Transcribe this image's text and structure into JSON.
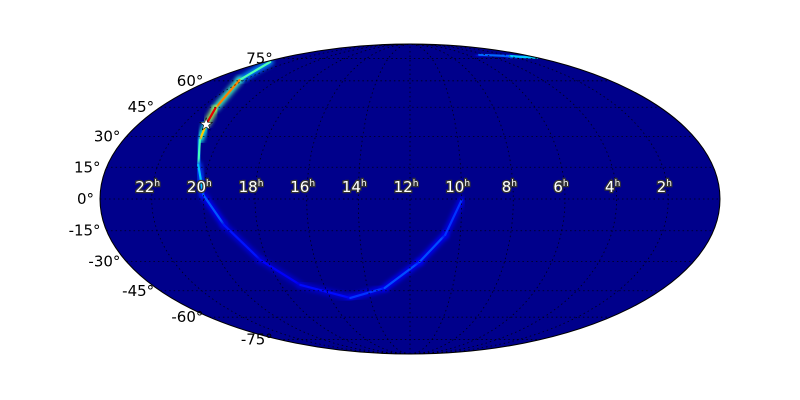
{
  "chart_data": {
    "type": "heatmap",
    "projection": "mollweide",
    "title": "",
    "colormap": "jet",
    "background_color": "#00008b",
    "ra_tick_labels": [
      "22",
      "20",
      "18",
      "16",
      "14",
      "12",
      "10",
      "8",
      "6",
      "4",
      "2"
    ],
    "ra_tick_values_hours": [
      22,
      20,
      18,
      16,
      14,
      12,
      10,
      8,
      6,
      4,
      2
    ],
    "ra_unit_suffix": "h",
    "dec_tick_labels": [
      "75°",
      "60°",
      "45°",
      "30°",
      "15°",
      "0°",
      "-15°",
      "-30°",
      "-45°",
      "-60°",
      "-75°"
    ],
    "dec_tick_values_deg": [
      75,
      60,
      45,
      30,
      15,
      0,
      -15,
      -30,
      -45,
      -60,
      -75
    ],
    "grid": true,
    "probability_arc": [
      {
        "ra": 23.6,
        "dec": 72.5,
        "p": 0.35
      },
      {
        "ra": 22.3,
        "dec": 60.5,
        "p": 0.55
      },
      {
        "ra": 21.3,
        "dec": 44.6,
        "p": 0.95
      },
      {
        "ra": 21.0,
        "dec": 36.0,
        "p": 0.85
      },
      {
        "ra": 20.8,
        "dec": 28.3,
        "p": 0.5
      },
      {
        "ra": 20.4,
        "dec": 16.1,
        "p": 0.38
      },
      {
        "ra": 20.0,
        "dec": 1.9,
        "p": 0.25
      },
      {
        "ra": 19.3,
        "dec": -12.3,
        "p": 0.17
      },
      {
        "ra": 18.3,
        "dec": -29.2,
        "p": 0.12
      },
      {
        "ra": 17.1,
        "dec": -41.9,
        "p": 0.12
      },
      {
        "ra": 15.0,
        "dec": -48.9,
        "p": 0.15
      },
      {
        "ra": 13.2,
        "dec": -43.5,
        "p": 0.2
      },
      {
        "ra": 11.6,
        "dec": -30.2,
        "p": 0.2
      },
      {
        "ra": 10.6,
        "dec": -17.0,
        "p": 0.2
      },
      {
        "ra": 10.0,
        "dec": -0.5,
        "p": 0.15
      }
    ],
    "probability_streak": [
      {
        "ra": 4.7,
        "dec": 78.0,
        "p": 0.15
      },
      {
        "ra": 2.0,
        "dec": 77.0,
        "p": 0.3
      },
      {
        "ra": 0.1,
        "dec": 75.5,
        "p": 0.35
      }
    ],
    "marker": {
      "symbol": "star",
      "ra": 21.0,
      "dec": 36.0,
      "color": "#ffffff"
    }
  }
}
